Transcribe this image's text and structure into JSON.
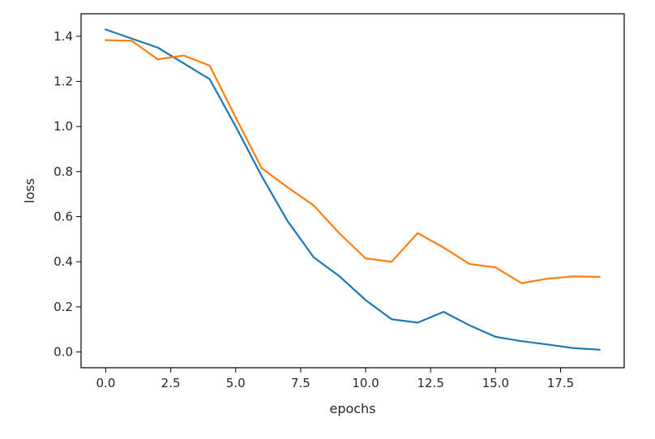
{
  "chart_data": {
    "type": "line",
    "title": "",
    "xlabel": "epochs",
    "ylabel": "loss",
    "xlim": [
      -0.95,
      19.95
    ],
    "ylim": [
      -0.07,
      1.5
    ],
    "xticks": [
      0.0,
      2.5,
      5.0,
      7.5,
      10.0,
      12.5,
      15.0,
      17.5
    ],
    "xtick_labels": [
      "0.0",
      "2.5",
      "5.0",
      "7.5",
      "10.0",
      "12.5",
      "15.0",
      "17.5"
    ],
    "yticks": [
      0.0,
      0.2,
      0.4,
      0.6,
      0.8,
      1.0,
      1.2,
      1.4
    ],
    "ytick_labels": [
      "0.0",
      "0.2",
      "0.4",
      "0.6",
      "0.8",
      "1.0",
      "1.2",
      "1.4"
    ],
    "grid": false,
    "x": [
      0,
      1,
      2,
      3,
      4,
      5,
      6,
      7,
      8,
      9,
      10,
      11,
      12,
      13,
      14,
      15,
      16,
      17,
      18,
      19
    ],
    "series": [
      {
        "color": "#1f77b4",
        "values": [
          1.43,
          1.39,
          1.35,
          1.28,
          1.21,
          1.0,
          0.78,
          0.58,
          0.42,
          0.335,
          0.23,
          0.145,
          0.13,
          0.178,
          0.118,
          0.067,
          0.048,
          0.033,
          0.017,
          0.01
        ]
      },
      {
        "color": "#ff7f0e",
        "values": [
          1.383,
          1.38,
          1.298,
          1.315,
          1.27,
          1.04,
          0.815,
          0.73,
          0.65,
          0.525,
          0.415,
          0.4,
          0.527,
          0.463,
          0.39,
          0.375,
          0.305,
          0.325,
          0.335,
          0.333
        ]
      }
    ]
  }
}
